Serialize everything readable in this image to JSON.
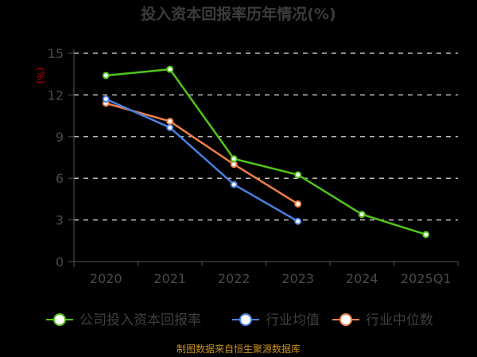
{
  "chart_data": {
    "type": "line",
    "title": "投入资本回报率历年情况(%)",
    "ylabel": "(%)",
    "xlabel": "",
    "ylim": [
      0,
      15
    ],
    "yticks": [
      0,
      3,
      6,
      9,
      12,
      15
    ],
    "categories": [
      "2020",
      "2021",
      "2022",
      "2023",
      "2024",
      "2025Q1"
    ],
    "grid": "horizontal dashed",
    "legend_position": "bottom",
    "series": [
      {
        "name": "公司投入资本回报率",
        "color": "#52c41a",
        "values": [
          13.4,
          13.85,
          7.4,
          6.25,
          3.4,
          1.95
        ]
      },
      {
        "name": "行业均值",
        "color": "#4a80e0",
        "values": [
          11.7,
          9.65,
          5.55,
          2.9,
          null,
          null
        ]
      },
      {
        "name": "行业中位数",
        "color": "#f0804a",
        "values": [
          11.4,
          10.1,
          7.0,
          4.15,
          null,
          null
        ]
      }
    ]
  },
  "source_note": "制图数据来自恒生聚源数据库"
}
